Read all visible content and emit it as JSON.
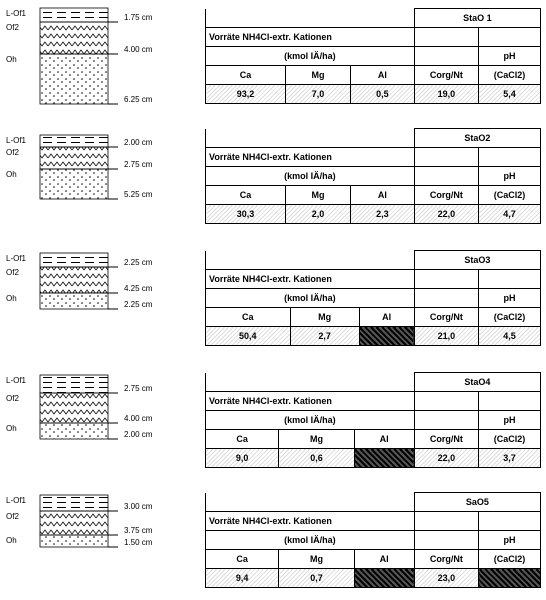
{
  "profiles": [
    {
      "layers": [
        {
          "label": "L-Of1",
          "depth": "1.75 cm"
        },
        {
          "label": "Of2",
          "depth": "4.00 cm"
        },
        {
          "label": "Oh",
          "depth": "6.25 cm"
        }
      ]
    },
    {
      "layers": [
        {
          "label": "L-Of1",
          "depth": "2.00 cm"
        },
        {
          "label": "Of2",
          "depth": "2.75 cm"
        },
        {
          "label": "Oh",
          "depth": "5.25 cm"
        }
      ]
    },
    {
      "layers": [
        {
          "label": "L-Of1",
          "depth": "2.25 cm"
        },
        {
          "label": "Of2",
          "depth": "4.25 cm"
        },
        {
          "label": "Oh",
          "depth": "2.25 cm"
        }
      ]
    },
    {
      "layers": [
        {
          "label": "L-Of1",
          "depth": "2.75 cm"
        },
        {
          "label": "Of2",
          "depth": "4.00 cm"
        },
        {
          "label": "Oh",
          "depth": "2.00 cm"
        }
      ]
    },
    {
      "layers": [
        {
          "label": "L-Of1",
          "depth": "3.00 cm"
        },
        {
          "label": "Of2",
          "depth": "3.75 cm"
        },
        {
          "label": "Oh",
          "depth": "1.50 cm"
        }
      ]
    }
  ],
  "tables": [
    {
      "title": "StaO 1",
      "values": {
        "Ca": "93,2",
        "Mg": "7,0",
        "Al": "0,5",
        "Corg": "19,0",
        "pH": "5,4"
      }
    },
    {
      "title": "StaO2",
      "values": {
        "Ca": "30,3",
        "Mg": "2,0",
        "Al": "2,3",
        "Corg": "22,0",
        "pH": "4,7"
      }
    },
    {
      "title": "StaO3",
      "values": {
        "Ca": "50,4",
        "Mg": "2,7",
        "Corg": "21,0",
        "pH": "4,5"
      }
    },
    {
      "title": "StaO4",
      "values": {
        "Ca": "9,0",
        "Mg": "0,6",
        "Corg": "22,0",
        "pH": "3,7"
      }
    },
    {
      "title": "SaO5",
      "values": {
        "Ca": "9,4",
        "Mg": "0,7",
        "Corg": "23,0"
      }
    }
  ],
  "table_header": {
    "group": "Vorräte NH4Cl-extr. Kationen",
    "unit": "(kmol IÄ/ha)",
    "ph": "pH",
    "columns": {
      "Ca": "Ca",
      "Mg": "Mg",
      "Al": "Al",
      "Corg": "Corg/Nt",
      "pH": "(CaCl2)"
    }
  }
}
